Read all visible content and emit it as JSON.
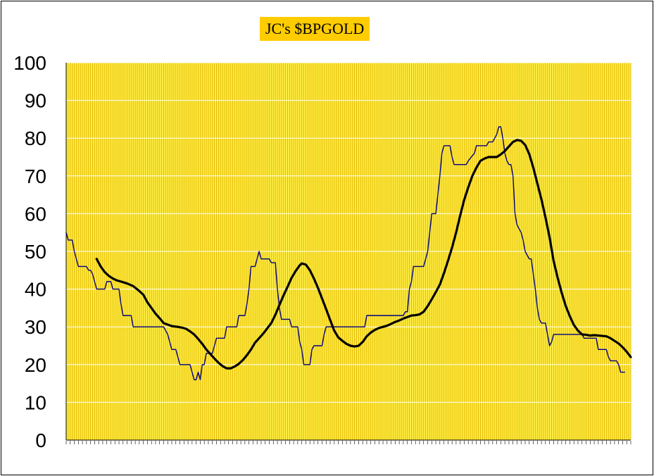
{
  "chart_data": {
    "type": "line",
    "title": "JC's $BPGOLD",
    "ylim": [
      0,
      100
    ],
    "yticks": [
      "0",
      "10",
      "20",
      "30",
      "40",
      "50",
      "60",
      "70",
      "80",
      "90",
      "100"
    ],
    "grid": true,
    "colors": {
      "plot_background": "#ffee44",
      "vertical_grid": "#e0b400",
      "horizontal_grid": "#ffffff",
      "raw_series": "#000080",
      "smoothed_series": "#000000",
      "title_background": "#ffcc00"
    },
    "series": [
      {
        "points": [
          [
            0,
            55
          ],
          [
            1,
            53
          ],
          [
            3,
            53
          ],
          [
            4,
            50
          ],
          [
            5,
            48
          ],
          [
            6,
            46
          ],
          [
            10,
            46
          ],
          [
            11,
            45
          ],
          [
            12,
            45
          ],
          [
            13,
            44
          ],
          [
            14,
            42
          ],
          [
            15,
            40
          ],
          [
            19,
            40
          ],
          [
            20,
            42
          ],
          [
            22,
            42
          ],
          [
            23,
            40
          ],
          [
            26,
            40
          ],
          [
            27,
            36
          ],
          [
            28,
            33
          ],
          [
            32,
            33
          ],
          [
            33,
            30
          ],
          [
            48,
            30
          ],
          [
            49,
            29
          ],
          [
            50,
            28
          ],
          [
            51,
            26
          ],
          [
            52,
            24
          ],
          [
            54,
            24
          ],
          [
            55,
            22
          ],
          [
            56,
            20
          ],
          [
            61,
            20
          ],
          [
            62,
            18
          ],
          [
            63,
            16
          ],
          [
            64,
            16
          ],
          [
            65,
            18
          ],
          [
            66,
            16
          ],
          [
            67,
            20
          ],
          [
            68,
            20
          ],
          [
            69,
            23
          ],
          [
            72,
            23
          ],
          [
            73,
            25
          ],
          [
            74,
            27
          ],
          [
            78,
            27
          ],
          [
            79,
            30
          ],
          [
            84,
            30
          ],
          [
            85,
            33
          ],
          [
            88,
            33
          ],
          [
            89,
            36
          ],
          [
            90,
            40
          ],
          [
            91,
            46
          ],
          [
            93,
            46
          ],
          [
            94,
            48
          ],
          [
            95,
            50
          ],
          [
            96,
            48
          ],
          [
            100,
            48
          ],
          [
            101,
            47
          ],
          [
            103,
            47
          ],
          [
            104,
            40
          ],
          [
            105,
            35
          ],
          [
            106,
            32
          ],
          [
            110,
            32
          ],
          [
            111,
            30
          ],
          [
            114,
            30
          ],
          [
            115,
            26
          ],
          [
            116,
            24
          ],
          [
            117,
            20
          ],
          [
            120,
            20
          ],
          [
            121,
            24
          ],
          [
            122,
            25
          ],
          [
            126,
            25
          ],
          [
            127,
            28
          ],
          [
            128,
            30
          ],
          [
            147,
            30
          ],
          [
            148,
            33
          ],
          [
            166,
            33
          ],
          [
            167,
            34
          ],
          [
            168,
            34
          ],
          [
            169,
            40
          ],
          [
            170,
            42
          ],
          [
            171,
            46
          ],
          [
            176,
            46
          ],
          [
            177,
            48
          ],
          [
            178,
            50
          ],
          [
            179,
            55
          ],
          [
            180,
            60
          ],
          [
            182,
            60
          ],
          [
            183,
            65
          ],
          [
            184,
            70
          ],
          [
            185,
            76
          ],
          [
            186,
            78
          ],
          [
            189,
            78
          ],
          [
            190,
            75
          ],
          [
            191,
            73
          ],
          [
            197,
            73
          ],
          [
            198,
            74
          ],
          [
            201,
            76
          ],
          [
            202,
            78
          ],
          [
            207,
            78
          ],
          [
            208,
            79
          ],
          [
            210,
            79
          ],
          [
            211,
            80
          ],
          [
            212,
            81
          ],
          [
            213,
            83
          ],
          [
            214,
            83
          ],
          [
            215,
            80
          ],
          [
            216,
            76
          ],
          [
            217,
            74
          ],
          [
            218,
            73
          ],
          [
            219,
            73
          ],
          [
            220,
            70
          ],
          [
            221,
            60
          ],
          [
            222,
            57
          ],
          [
            223,
            56
          ],
          [
            224,
            55
          ],
          [
            225,
            53
          ],
          [
            226,
            50
          ],
          [
            227,
            49
          ],
          [
            228,
            48
          ],
          [
            229,
            48
          ],
          [
            230,
            44
          ],
          [
            231,
            40
          ],
          [
            232,
            35
          ],
          [
            233,
            32
          ],
          [
            234,
            31
          ],
          [
            236,
            31
          ],
          [
            237,
            28
          ],
          [
            238,
            25
          ],
          [
            239,
            26
          ],
          [
            240,
            28
          ],
          [
            254,
            28
          ],
          [
            255,
            27
          ],
          [
            261,
            27
          ],
          [
            262,
            24
          ],
          [
            266,
            24
          ],
          [
            267,
            22
          ],
          [
            268,
            21
          ],
          [
            271,
            21
          ],
          [
            272,
            20
          ],
          [
            273,
            18
          ],
          [
            275,
            18
          ]
        ]
      },
      {
        "points": [
          [
            15,
            48
          ],
          [
            17,
            46
          ],
          [
            19,
            44.5
          ],
          [
            21,
            43.5
          ],
          [
            23,
            42.8
          ],
          [
            25,
            42.3
          ],
          [
            27,
            42
          ],
          [
            30,
            41.5
          ],
          [
            33,
            40.8
          ],
          [
            36,
            39.5
          ],
          [
            38,
            38.5
          ],
          [
            40,
            36.5
          ],
          [
            42,
            35
          ],
          [
            44,
            33.5
          ],
          [
            46,
            32.3
          ],
          [
            48,
            31
          ],
          [
            50,
            30.6
          ],
          [
            52,
            30.2
          ],
          [
            55,
            30
          ],
          [
            57,
            29.8
          ],
          [
            59,
            29.5
          ],
          [
            61,
            28.8
          ],
          [
            63,
            28
          ],
          [
            65,
            26.8
          ],
          [
            67,
            25.5
          ],
          [
            69,
            24
          ],
          [
            71,
            22.8
          ],
          [
            73,
            21.6
          ],
          [
            75,
            20.5
          ],
          [
            77,
            19.6
          ],
          [
            79,
            19
          ],
          [
            81,
            19
          ],
          [
            83,
            19.5
          ],
          [
            85,
            20.2
          ],
          [
            87,
            21.2
          ],
          [
            89,
            22.5
          ],
          [
            91,
            24
          ],
          [
            93,
            25.8
          ],
          [
            95,
            27
          ],
          [
            97,
            28.2
          ],
          [
            99,
            29.6
          ],
          [
            101,
            31
          ],
          [
            103,
            33.2
          ],
          [
            105,
            35.8
          ],
          [
            107,
            38.3
          ],
          [
            109,
            40.6
          ],
          [
            111,
            43
          ],
          [
            113,
            44.8
          ],
          [
            115,
            46.3
          ],
          [
            116,
            46.8
          ],
          [
            118,
            46.5
          ],
          [
            120,
            45
          ],
          [
            122,
            42.8
          ],
          [
            124,
            40.3
          ],
          [
            126,
            37.5
          ],
          [
            128,
            34.7
          ],
          [
            130,
            31.8
          ],
          [
            132,
            29
          ],
          [
            134,
            27.2
          ],
          [
            136,
            26.3
          ],
          [
            138,
            25.5
          ],
          [
            140,
            25
          ],
          [
            142,
            24.8
          ],
          [
            144,
            25
          ],
          [
            146,
            26
          ],
          [
            148,
            27.5
          ],
          [
            150,
            28.5
          ],
          [
            152,
            29.2
          ],
          [
            154,
            29.7
          ],
          [
            156,
            30
          ],
          [
            158,
            30.3
          ],
          [
            160,
            30.8
          ],
          [
            162,
            31.3
          ],
          [
            164,
            31.7
          ],
          [
            166,
            32.2
          ],
          [
            168,
            32.6
          ],
          [
            170,
            33
          ],
          [
            172,
            33.1
          ],
          [
            174,
            33.3
          ],
          [
            176,
            34
          ],
          [
            178,
            35.5
          ],
          [
            180,
            37.3
          ],
          [
            182,
            39.2
          ],
          [
            184,
            41.2
          ],
          [
            186,
            44.2
          ],
          [
            188,
            47.5
          ],
          [
            190,
            51
          ],
          [
            192,
            55
          ],
          [
            194,
            59.5
          ],
          [
            196,
            63.7
          ],
          [
            198,
            67
          ],
          [
            200,
            70
          ],
          [
            202,
            72.2
          ],
          [
            204,
            74
          ],
          [
            206,
            74.6
          ],
          [
            208,
            75
          ],
          [
            210,
            75
          ],
          [
            212,
            75
          ],
          [
            214,
            75.7
          ],
          [
            216,
            76.6
          ],
          [
            218,
            77.8
          ],
          [
            220,
            79
          ],
          [
            222,
            79.5
          ],
          [
            224,
            79.3
          ],
          [
            226,
            78.2
          ],
          [
            228,
            75.8
          ],
          [
            230,
            72.2
          ],
          [
            232,
            68
          ],
          [
            234,
            63.8
          ],
          [
            236,
            59
          ],
          [
            238,
            53.8
          ],
          [
            240,
            47.5
          ],
          [
            242,
            43
          ],
          [
            244,
            39
          ],
          [
            246,
            35.5
          ],
          [
            248,
            32.8
          ],
          [
            250,
            30.5
          ],
          [
            252,
            29
          ],
          [
            254,
            28
          ],
          [
            256,
            27.9
          ],
          [
            258,
            27.7
          ],
          [
            260,
            27.8
          ],
          [
            262,
            27.7
          ],
          [
            264,
            27.6
          ],
          [
            266,
            27.5
          ],
          [
            268,
            27
          ],
          [
            270,
            26.3
          ],
          [
            272,
            25.6
          ],
          [
            274,
            24.6
          ],
          [
            276,
            23.4
          ],
          [
            278,
            22
          ]
        ]
      }
    ]
  }
}
